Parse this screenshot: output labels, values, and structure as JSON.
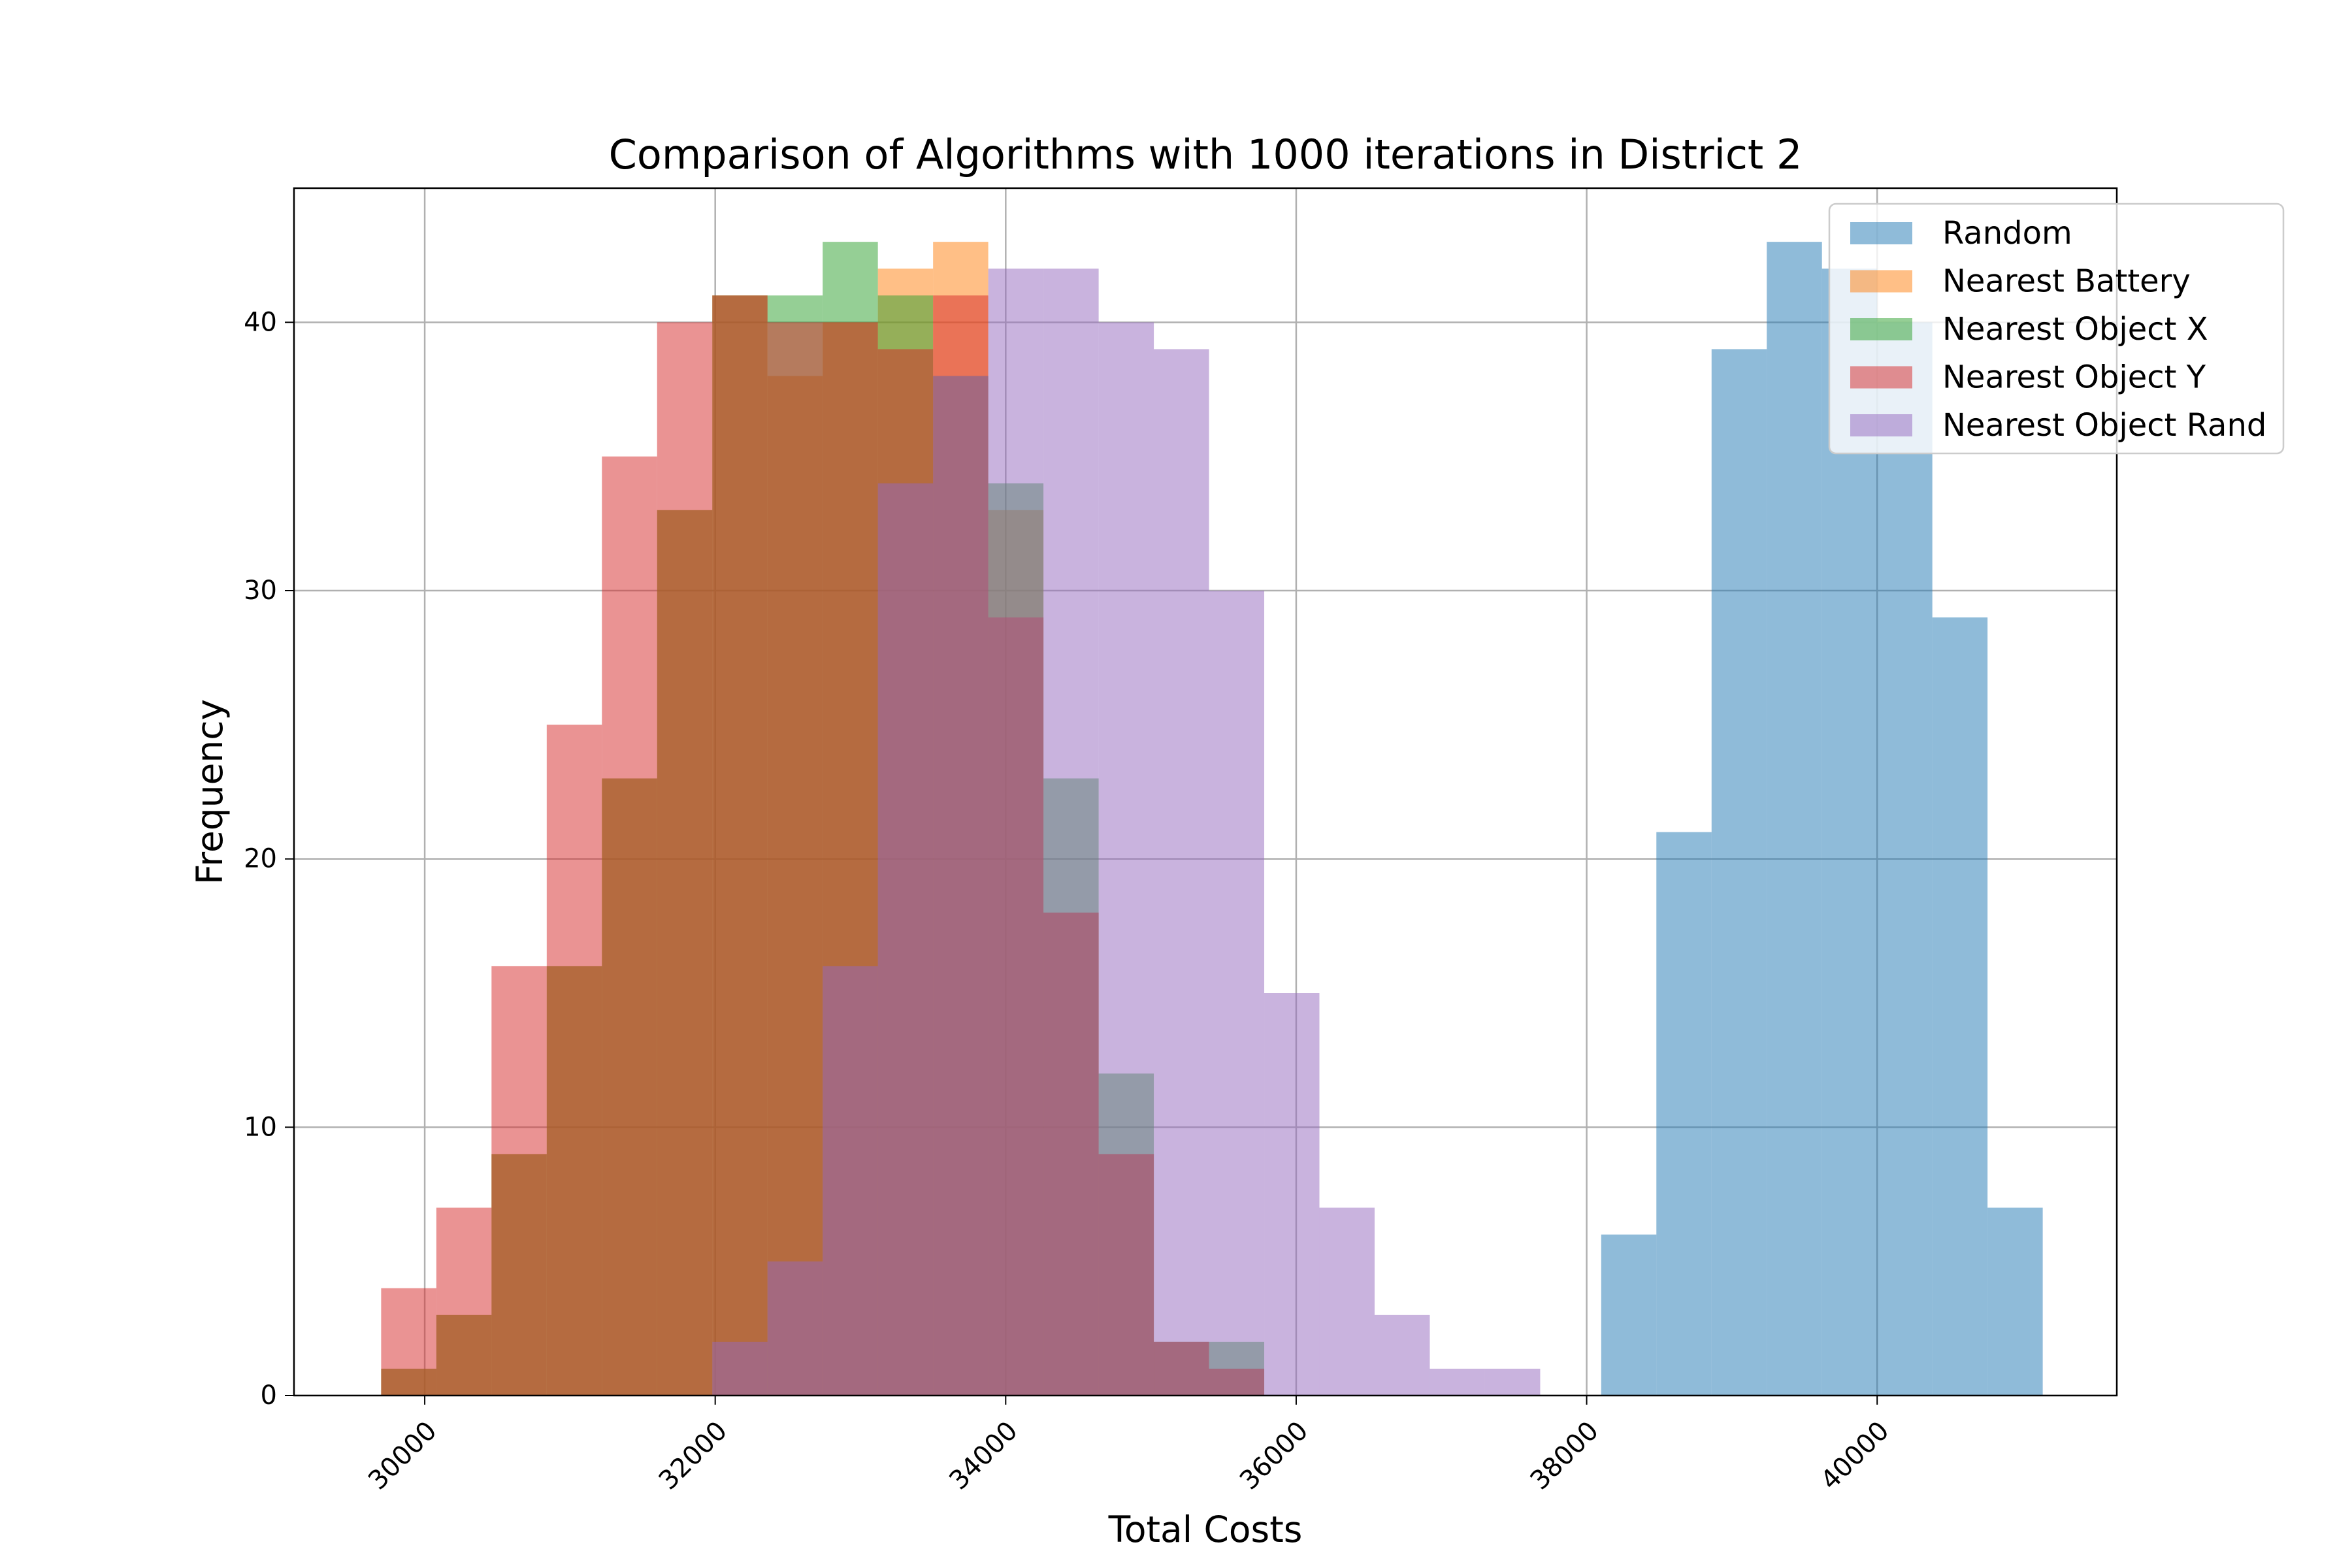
{
  "chart_data": {
    "type": "bar",
    "title": "Comparison of Algorithms with 1000 iterations in District 2",
    "xlabel": "Total Costs",
    "ylabel": "Frequency",
    "xlim": [
      29100,
      41650
    ],
    "ylim": [
      0,
      45
    ],
    "xticks": [
      30000,
      32000,
      34000,
      36000,
      38000,
      40000
    ],
    "xtick_labels": [
      "30000",
      "32000",
      "34000",
      "36000",
      "38000",
      "40000"
    ],
    "yticks": [
      0,
      10,
      20,
      30,
      40
    ],
    "ytick_labels": [
      "0",
      "10",
      "20",
      "30",
      "40"
    ],
    "grid": true,
    "legend_position": "top-right",
    "series": [
      {
        "name": "Random",
        "color": "#1f77b4",
        "bins": [
          [
            38100,
            38480,
            6
          ],
          [
            38480,
            38860,
            21
          ],
          [
            38860,
            39240,
            39
          ],
          [
            39240,
            39620,
            43
          ],
          [
            39620,
            40000,
            42
          ],
          [
            40000,
            40380,
            40
          ],
          [
            40380,
            40760,
            29
          ],
          [
            40760,
            41140,
            7
          ]
        ]
      },
      {
        "name": "Nearest Battery",
        "color": "#ff7f0e",
        "bins": [
          [
            29700,
            30080,
            1
          ],
          [
            30080,
            30460,
            3
          ],
          [
            30460,
            30840,
            9
          ],
          [
            30840,
            31220,
            16
          ],
          [
            31220,
            31600,
            23
          ],
          [
            31600,
            31980,
            33
          ],
          [
            31980,
            32360,
            41
          ],
          [
            32360,
            32740,
            38
          ],
          [
            32740,
            33120,
            40
          ],
          [
            33120,
            33500,
            42
          ],
          [
            33500,
            33880,
            43
          ],
          [
            33880,
            34260,
            33
          ],
          [
            34260,
            34640,
            18
          ],
          [
            34640,
            35020,
            9
          ],
          [
            35020,
            35400,
            2
          ],
          [
            35400,
            35780,
            1
          ]
        ]
      },
      {
        "name": "Nearest Object X",
        "color": "#2ca02c",
        "bins": [
          [
            29700,
            30080,
            1
          ],
          [
            30080,
            30460,
            3
          ],
          [
            30460,
            30840,
            9
          ],
          [
            30840,
            31220,
            16
          ],
          [
            31220,
            31600,
            23
          ],
          [
            31600,
            31980,
            33
          ],
          [
            31980,
            32360,
            41
          ],
          [
            32360,
            32740,
            41
          ],
          [
            32740,
            33120,
            43
          ],
          [
            33120,
            33500,
            41
          ],
          [
            33500,
            33880,
            38
          ],
          [
            33880,
            34260,
            34
          ],
          [
            34260,
            34640,
            23
          ],
          [
            34640,
            35020,
            12
          ],
          [
            35020,
            35400,
            2
          ],
          [
            35400,
            35780,
            2
          ]
        ]
      },
      {
        "name": "Nearest Object Y",
        "color": "#d62728",
        "bins": [
          [
            29700,
            30080,
            4
          ],
          [
            30080,
            30460,
            7
          ],
          [
            30460,
            30840,
            16
          ],
          [
            30840,
            31220,
            25
          ],
          [
            31220,
            31600,
            35
          ],
          [
            31600,
            31980,
            40
          ],
          [
            31980,
            32360,
            41
          ],
          [
            32360,
            32740,
            40
          ],
          [
            32740,
            33120,
            40
          ],
          [
            33120,
            33500,
            39
          ],
          [
            33500,
            33880,
            41
          ],
          [
            33880,
            34260,
            29
          ],
          [
            34260,
            34640,
            18
          ],
          [
            34640,
            35020,
            9
          ],
          [
            35020,
            35400,
            2
          ],
          [
            35400,
            35780,
            1
          ]
        ]
      },
      {
        "name": "Nearest Object Rand",
        "color": "#9467bd",
        "bins": [
          [
            31980,
            32360,
            2
          ],
          [
            32360,
            32740,
            5
          ],
          [
            32740,
            33120,
            16
          ],
          [
            33120,
            33500,
            34
          ],
          [
            33500,
            33880,
            38
          ],
          [
            33880,
            34260,
            42
          ],
          [
            34260,
            34640,
            42
          ],
          [
            34640,
            35020,
            40
          ],
          [
            35020,
            35400,
            39
          ],
          [
            35400,
            35780,
            30
          ],
          [
            35780,
            36160,
            15
          ],
          [
            36160,
            36540,
            7
          ],
          [
            36540,
            36920,
            3
          ],
          [
            36920,
            37300,
            1
          ],
          [
            37300,
            37680,
            1
          ]
        ]
      }
    ]
  }
}
